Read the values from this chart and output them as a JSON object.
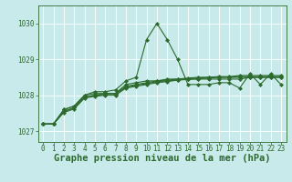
{
  "background_color": "#c8eaea",
  "plot_bg_color": "#c8eaea",
  "grid_color": "#ffffff",
  "line_color": "#2d6a2d",
  "title": "Graphe pression niveau de la mer (hPa)",
  "xlim": [
    -0.5,
    23.5
  ],
  "ylim": [
    1026.7,
    1030.5
  ],
  "yticks": [
    1027,
    1028,
    1029,
    1030
  ],
  "xticks": [
    0,
    1,
    2,
    3,
    4,
    5,
    6,
    7,
    8,
    9,
    10,
    11,
    12,
    13,
    14,
    15,
    16,
    17,
    18,
    19,
    20,
    21,
    22,
    23
  ],
  "lines": [
    [
      1027.2,
      1027.2,
      1027.6,
      1027.7,
      1028.0,
      1028.1,
      1028.1,
      1028.15,
      1028.4,
      1028.5,
      1029.55,
      1030.0,
      1029.55,
      1029.0,
      1028.3,
      1028.3,
      1028.3,
      1028.35,
      1028.35,
      1028.2,
      1028.6,
      1028.3,
      1028.6,
      1028.3
    ],
    [
      1027.2,
      1027.2,
      1027.6,
      1027.7,
      1028.0,
      1028.05,
      1028.05,
      1028.05,
      1028.3,
      1028.35,
      1028.4,
      1028.4,
      1028.45,
      1028.45,
      1028.45,
      1028.45,
      1028.45,
      1028.45,
      1028.45,
      1028.45,
      1028.5,
      1028.5,
      1028.5,
      1028.5
    ],
    [
      1027.2,
      1027.2,
      1027.55,
      1027.65,
      1027.95,
      1028.0,
      1028.05,
      1028.05,
      1028.25,
      1028.3,
      1028.35,
      1028.4,
      1028.42,
      1028.45,
      1028.48,
      1028.5,
      1028.5,
      1028.52,
      1028.52,
      1028.55,
      1028.55,
      1028.55,
      1028.55,
      1028.55
    ],
    [
      1027.2,
      1027.2,
      1027.55,
      1027.65,
      1027.95,
      1028.0,
      1028.02,
      1028.02,
      1028.22,
      1028.28,
      1028.32,
      1028.38,
      1028.4,
      1028.43,
      1028.46,
      1028.48,
      1028.5,
      1028.5,
      1028.5,
      1028.52,
      1028.52,
      1028.52,
      1028.52,
      1028.52
    ],
    [
      1027.2,
      1027.2,
      1027.52,
      1027.62,
      1027.92,
      1027.97,
      1028.0,
      1028.0,
      1028.2,
      1028.25,
      1028.3,
      1028.35,
      1028.38,
      1028.42,
      1028.44,
      1028.46,
      1028.48,
      1028.5,
      1028.5,
      1028.5,
      1028.5,
      1028.5,
      1028.5,
      1028.5
    ]
  ],
  "marker": "D",
  "markersize": 2.0,
  "linewidth": 0.8,
  "title_fontsize": 7.5,
  "tick_fontsize": 5.5,
  "tick_color": "#2d6a2d",
  "axis_color": "#2d6a2d",
  "grid_linewidth": 0.6
}
